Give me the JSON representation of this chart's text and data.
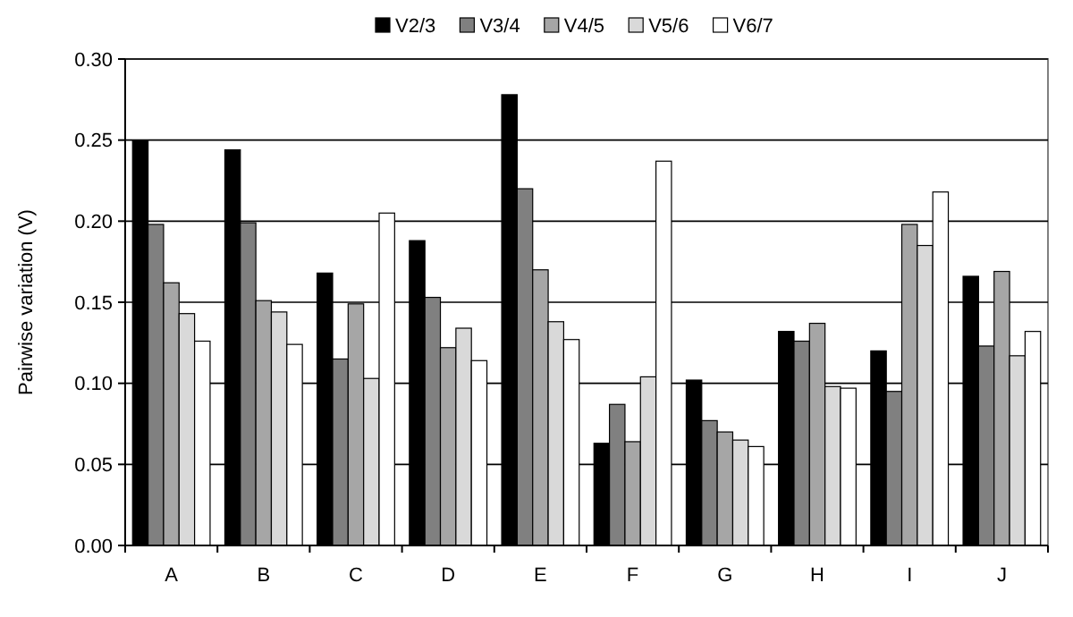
{
  "chart_data": {
    "type": "bar",
    "ylabel": "Pairwise variation (V)",
    "categories": [
      "A",
      "B",
      "C",
      "D",
      "E",
      "F",
      "G",
      "H",
      "I",
      "J"
    ],
    "series": [
      {
        "name": "V2/3",
        "color": "#000000",
        "values": [
          0.25,
          0.244,
          0.168,
          0.188,
          0.278,
          0.063,
          0.102,
          0.132,
          0.12,
          0.166
        ]
      },
      {
        "name": "V3/4",
        "color": "#808080",
        "values": [
          0.198,
          0.199,
          0.115,
          0.153,
          0.22,
          0.087,
          0.077,
          0.126,
          0.095,
          0.123
        ]
      },
      {
        "name": "V4/5",
        "color": "#a6a6a6",
        "values": [
          0.162,
          0.151,
          0.149,
          0.122,
          0.17,
          0.064,
          0.07,
          0.137,
          0.198,
          0.169
        ]
      },
      {
        "name": "V5/6",
        "color": "#d9d9d9",
        "values": [
          0.143,
          0.144,
          0.103,
          0.134,
          0.138,
          0.104,
          0.065,
          0.098,
          0.185,
          0.117
        ]
      },
      {
        "name": "V6/7",
        "color": "#ffffff",
        "values": [
          0.126,
          0.124,
          0.205,
          0.114,
          0.127,
          0.237,
          0.061,
          0.097,
          0.218,
          0.132
        ]
      }
    ],
    "ylim": [
      0,
      0.3
    ],
    "yticks": [
      {
        "value": 0,
        "label": "0.00"
      },
      {
        "value": 0.05,
        "label": "0.05"
      },
      {
        "value": 0.1,
        "label": "0.10"
      },
      {
        "value": 0.15,
        "label": "0.15"
      },
      {
        "value": 0.2,
        "label": "0.20"
      },
      {
        "value": 0.25,
        "label": "0.25"
      },
      {
        "value": 0.3,
        "label": "0.30"
      }
    ],
    "grid": "y",
    "legend": "top"
  }
}
